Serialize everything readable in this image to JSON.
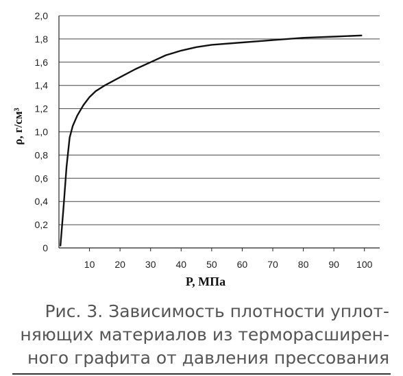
{
  "chart_data": {
    "type": "line",
    "xlabel": "P, МПа",
    "ylabel": "ρ, г/см³",
    "ylim": [
      0,
      2.0
    ],
    "xlim": [
      0,
      105
    ],
    "grid": true,
    "x_ticks": [
      {
        "value": 10,
        "label": "10"
      },
      {
        "value": 20,
        "label": "20"
      },
      {
        "value": 30,
        "label": "30"
      },
      {
        "value": 40,
        "label": "40"
      },
      {
        "value": 50,
        "label": "50"
      },
      {
        "value": 60,
        "label": "60"
      },
      {
        "value": 70,
        "label": "70"
      },
      {
        "value": 80,
        "label": "80"
      },
      {
        "value": 90,
        "label": "90"
      },
      {
        "value": 100,
        "label": "100"
      }
    ],
    "y_ticks": [
      {
        "value": 0,
        "label": "0"
      },
      {
        "value": 0.2,
        "label": "0,2"
      },
      {
        "value": 0.4,
        "label": "0,4"
      },
      {
        "value": 0.6,
        "label": "0,6"
      },
      {
        "value": 0.8,
        "label": "0,8"
      },
      {
        "value": 1.0,
        "label": "1,0"
      },
      {
        "value": 1.2,
        "label": "1,2"
      },
      {
        "value": 1.4,
        "label": "1,4"
      },
      {
        "value": 1.6,
        "label": "1,6"
      },
      {
        "value": 1.8,
        "label": "1,8"
      },
      {
        "value": 2.0,
        "label": "2,0"
      }
    ],
    "series": [
      {
        "color": "#111111",
        "x": [
          0.5,
          1.5,
          2.5,
          3.5,
          4.5,
          6,
          8,
          10,
          12,
          15,
          20,
          25,
          30,
          35,
          40,
          45,
          50,
          60,
          70,
          80,
          90,
          99
        ],
        "y": [
          0.02,
          0.35,
          0.7,
          0.95,
          1.05,
          1.14,
          1.23,
          1.3,
          1.35,
          1.4,
          1.47,
          1.54,
          1.6,
          1.66,
          1.7,
          1.73,
          1.75,
          1.77,
          1.79,
          1.81,
          1.82,
          1.83
        ]
      }
    ]
  },
  "caption": {
    "lines": [
      "Рис. 3. Зависимость плотности уплот-",
      "няющих материалов из терморасширен-",
      "ного графита от давления прессования"
    ]
  }
}
